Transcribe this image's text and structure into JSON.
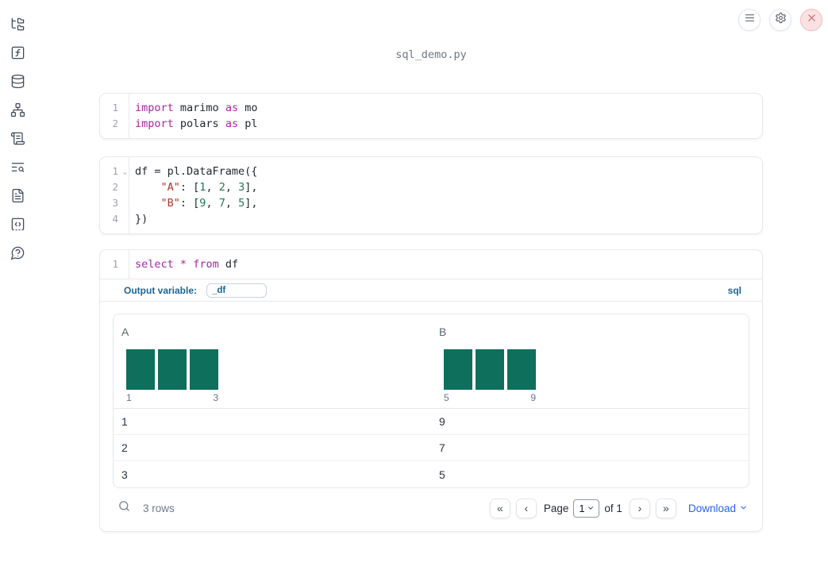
{
  "window": {
    "title": "sql_demo.py"
  },
  "topbar": {
    "buttons": [
      "menu",
      "settings",
      "close"
    ]
  },
  "sidebar": {
    "items": [
      "file-explorer",
      "functions",
      "datasources",
      "dependencies",
      "logs",
      "search-logs",
      "documentation",
      "snippets",
      "help"
    ]
  },
  "colors": {
    "keyword": "#a626a4",
    "string": "#a8382e",
    "number": "#1e7a52",
    "hist_bar": "#0e6f5c",
    "accent_blue": "#1a6699",
    "link_blue": "#2563eb"
  },
  "cells": [
    {
      "type": "python",
      "lines": [
        {
          "num": "1",
          "tokens": [
            [
              "kw",
              "import"
            ],
            [
              "t",
              " marimo "
            ],
            [
              "kw",
              "as"
            ],
            [
              "t",
              " mo"
            ]
          ]
        },
        {
          "num": "2",
          "tokens": [
            [
              "kw",
              "import"
            ],
            [
              "t",
              " polars "
            ],
            [
              "kw",
              "as"
            ],
            [
              "t",
              " pl"
            ]
          ]
        }
      ]
    },
    {
      "type": "python",
      "lines": [
        {
          "num": "1",
          "fold": true,
          "tokens": [
            [
              "t",
              "df = pl.DataFrame({"
            ]
          ]
        },
        {
          "num": "2",
          "tokens": [
            [
              "t",
              "    "
            ],
            [
              "str",
              "\"A\""
            ],
            [
              "t",
              ": ["
            ],
            [
              "num",
              "1"
            ],
            [
              "t",
              ", "
            ],
            [
              "num",
              "2"
            ],
            [
              "t",
              ", "
            ],
            [
              "num",
              "3"
            ],
            [
              "t",
              "],"
            ]
          ]
        },
        {
          "num": "3",
          "tokens": [
            [
              "t",
              "    "
            ],
            [
              "str",
              "\"B\""
            ],
            [
              "t",
              ": ["
            ],
            [
              "num",
              "9"
            ],
            [
              "t",
              ", "
            ],
            [
              "num",
              "7"
            ],
            [
              "t",
              ", "
            ],
            [
              "num",
              "5"
            ],
            [
              "t",
              "],"
            ]
          ]
        },
        {
          "num": "4",
          "tokens": [
            [
              "t",
              "})"
            ]
          ]
        }
      ]
    },
    {
      "type": "sql",
      "lines": [
        {
          "num": "1",
          "tokens": [
            [
              "kw",
              "select"
            ],
            [
              "t",
              " "
            ],
            [
              "kw",
              "*"
            ],
            [
              "t",
              " "
            ],
            [
              "kw",
              "from"
            ],
            [
              "t",
              " df"
            ]
          ]
        }
      ],
      "output_variable_label": "Output variable:",
      "output_variable_value": "_df",
      "language_badge": "sql"
    }
  ],
  "table": {
    "columns": [
      {
        "name": "A",
        "hist": {
          "values": [
            1,
            1,
            1
          ],
          "min_label": "1",
          "max_label": "3"
        }
      },
      {
        "name": "B",
        "hist": {
          "values": [
            1,
            1,
            1
          ],
          "min_label": "5",
          "max_label": "9"
        }
      }
    ],
    "rows": [
      [
        "1",
        "9"
      ],
      [
        "2",
        "7"
      ],
      [
        "3",
        "5"
      ]
    ],
    "footer": {
      "row_count": "3 rows",
      "pagination": {
        "first_icon": "«",
        "prev_icon": "‹",
        "next_icon": "›",
        "last_icon": "»",
        "page_label": "Page",
        "page_value": "1",
        "of_label": "of 1"
      },
      "download_label": "Download"
    }
  }
}
